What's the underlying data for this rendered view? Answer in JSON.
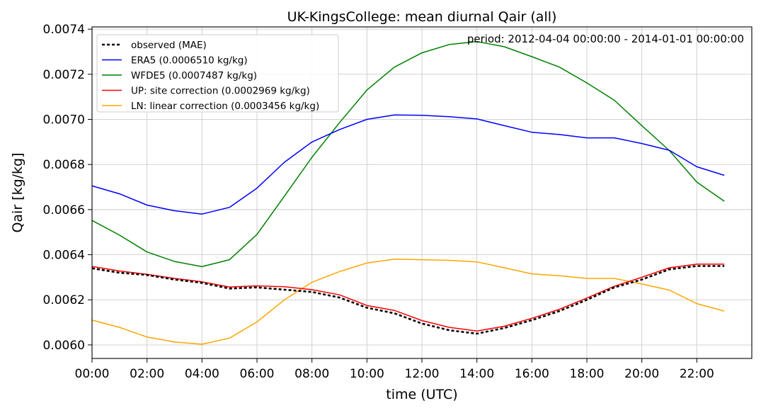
{
  "chart_data": {
    "type": "line",
    "title": "UK-KingsCollege: mean diurnal Qair (all)",
    "annotation": "period: 2012-04-04 00:00:00 - 2014-01-01 00:00:00",
    "xlabel": "time (UTC)",
    "ylabel": "Qair [kg/kg]",
    "xlim": [
      0,
      24
    ],
    "ylim": [
      0.00594,
      0.00741
    ],
    "grid": true,
    "legend_position": "top-left",
    "x_ticks": [
      0,
      2,
      4,
      6,
      8,
      10,
      12,
      14,
      16,
      18,
      20,
      22
    ],
    "x_tick_labels": [
      "00:00",
      "02:00",
      "04:00",
      "06:00",
      "08:00",
      "10:00",
      "12:00",
      "14:00",
      "16:00",
      "18:00",
      "20:00",
      "22:00"
    ],
    "y_ticks": [
      0.006,
      0.0062,
      0.0064,
      0.0066,
      0.0068,
      0.007,
      0.0072,
      0.0074
    ],
    "y_tick_labels": [
      "0.0060",
      "0.0062",
      "0.0064",
      "0.0066",
      "0.0068",
      "0.0070",
      "0.0072",
      "0.0074"
    ],
    "x": [
      0,
      1,
      2,
      3,
      4,
      5,
      6,
      7,
      8,
      9,
      10,
      11,
      12,
      13,
      14,
      15,
      16,
      17,
      18,
      19,
      20,
      21,
      22,
      23
    ],
    "series": [
      {
        "name": "observed (MAE)",
        "color": "#000000",
        "dashed": true,
        "values": [
          0.00634,
          0.00632,
          0.00631,
          0.00629,
          0.006275,
          0.00625,
          0.006255,
          0.006245,
          0.006235,
          0.00621,
          0.006165,
          0.00614,
          0.006095,
          0.006065,
          0.00605,
          0.006075,
          0.00611,
          0.00615,
          0.0062,
          0.006255,
          0.00629,
          0.006335,
          0.00635,
          0.00635
        ]
      },
      {
        "name": "ERA5 (0.0006510 kg/kg)",
        "color": "#0000ff",
        "values": [
          0.006705,
          0.00667,
          0.00662,
          0.006595,
          0.00658,
          0.00661,
          0.006695,
          0.00681,
          0.0069,
          0.006955,
          0.007,
          0.00702,
          0.007018,
          0.007012,
          0.007002,
          0.006972,
          0.006943,
          0.006933,
          0.006918,
          0.006918,
          0.006893,
          0.006863,
          0.00679,
          0.006752
        ]
      },
      {
        "name": "WFDE5 (0.0007487 kg/kg)",
        "color": "#008000",
        "values": [
          0.006552,
          0.006487,
          0.006412,
          0.00637,
          0.006347,
          0.006378,
          0.00649,
          0.00666,
          0.006832,
          0.006985,
          0.00713,
          0.007232,
          0.007295,
          0.007332,
          0.007345,
          0.007322,
          0.007278,
          0.007232,
          0.007162,
          0.007085,
          0.006972,
          0.006862,
          0.006722,
          0.006637
        ]
      },
      {
        "name": "UP: site correction (0.0002969 kg/kg)",
        "color": "#ff0000",
        "values": [
          0.006348,
          0.006328,
          0.006313,
          0.006295,
          0.00628,
          0.006257,
          0.006262,
          0.006258,
          0.006245,
          0.006222,
          0.006175,
          0.006153,
          0.006108,
          0.006078,
          0.006062,
          0.006083,
          0.006118,
          0.006158,
          0.006208,
          0.00626,
          0.0063,
          0.006342,
          0.006358,
          0.006358
        ]
      },
      {
        "name": "LN: linear correction (0.0003456 kg/kg)",
        "color": "#ffa500",
        "values": [
          0.00611,
          0.006078,
          0.006035,
          0.006013,
          0.006003,
          0.00603,
          0.006102,
          0.0062,
          0.006278,
          0.006325,
          0.006363,
          0.00638,
          0.006378,
          0.006375,
          0.006368,
          0.006342,
          0.006315,
          0.006307,
          0.006295,
          0.006295,
          0.00627,
          0.006243,
          0.006183,
          0.00615
        ]
      }
    ]
  }
}
